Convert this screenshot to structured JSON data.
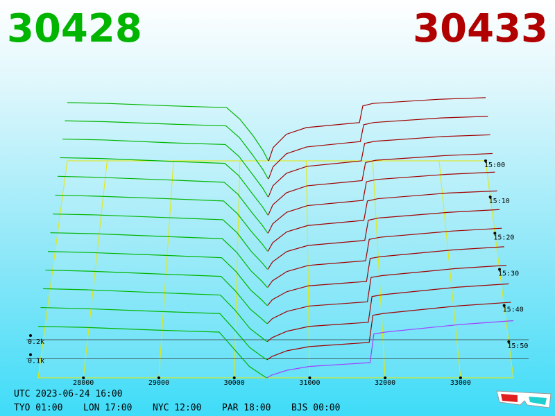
{
  "chart_data": {
    "type": "depth3d",
    "bid_price_label": "30428",
    "ask_price_label": "30433",
    "bid_color": "#00b400",
    "ask_color": "#a00000",
    "latest_ask_color": "#a040ff",
    "xlim": [
      27400,
      33700
    ],
    "xticks": [
      28000,
      29000,
      30000,
      31000,
      32000,
      33000
    ],
    "yticks": [
      {
        "value": 100,
        "label": "0.1k"
      },
      {
        "value": 200,
        "label": "0.2k"
      }
    ],
    "times": [
      "15:00",
      null,
      "15:10",
      null,
      "15:20",
      null,
      "15:30",
      null,
      "15:40",
      null,
      "15:50",
      null,
      null
    ],
    "bid_prices": [
      27400,
      28000,
      29000,
      29800,
      30000,
      30200,
      30350,
      30428
    ],
    "ask_prices": [
      30433,
      30500,
      30700,
      31000,
      31800,
      31850,
      32000,
      33000,
      33700
    ],
    "bids": [
      [
        350,
        345,
        330,
        320,
        250,
        150,
        60,
        0
      ],
      [
        345,
        340,
        325,
        315,
        245,
        140,
        55,
        0
      ],
      [
        340,
        335,
        318,
        308,
        238,
        132,
        52,
        0
      ],
      [
        333,
        328,
        312,
        300,
        230,
        125,
        48,
        0
      ],
      [
        326,
        320,
        305,
        292,
        222,
        118,
        45,
        0
      ],
      [
        318,
        312,
        298,
        285,
        212,
        110,
        42,
        0
      ],
      [
        310,
        305,
        290,
        278,
        205,
        100,
        38,
        0
      ],
      [
        303,
        298,
        282,
        270,
        195,
        92,
        35,
        0
      ],
      [
        296,
        290,
        275,
        262,
        185,
        85,
        32,
        0
      ],
      [
        290,
        284,
        268,
        256,
        175,
        78,
        28,
        0
      ],
      [
        284,
        278,
        262,
        250,
        168,
        70,
        25,
        0
      ],
      [
        277,
        271,
        256,
        245,
        158,
        65,
        22,
        0
      ],
      [
        270,
        265,
        250,
        240,
        150,
        60,
        20,
        0
      ]
    ],
    "asks": [
      [
        0,
        80,
        160,
        200,
        230,
        330,
        345,
        370,
        380
      ],
      [
        0,
        72,
        150,
        190,
        222,
        322,
        335,
        362,
        372
      ],
      [
        0,
        66,
        140,
        180,
        212,
        315,
        327,
        355,
        365
      ],
      [
        0,
        60,
        130,
        170,
        200,
        305,
        318,
        345,
        357
      ],
      [
        0,
        54,
        120,
        158,
        188,
        295,
        308,
        337,
        350
      ],
      [
        0,
        48,
        110,
        146,
        175,
        285,
        298,
        330,
        342
      ],
      [
        0,
        42,
        100,
        134,
        162,
        275,
        288,
        320,
        335
      ],
      [
        0,
        37,
        88,
        122,
        148,
        266,
        278,
        312,
        328
      ],
      [
        0,
        32,
        76,
        108,
        132,
        258,
        268,
        305,
        322
      ],
      [
        0,
        27,
        66,
        95,
        118,
        250,
        260,
        298,
        316
      ],
      [
        0,
        22,
        56,
        82,
        104,
        242,
        252,
        292,
        310
      ],
      [
        0,
        18,
        48,
        70,
        92,
        236,
        246,
        286,
        305
      ],
      [
        0,
        15,
        40,
        60,
        80,
        230,
        240,
        280,
        300
      ]
    ],
    "footer_utc": "UTC 2023-06-24 16:00",
    "footer_zones": [
      "TYO 01:00",
      "LON 17:00",
      "NYC 12:00",
      "PAR 18:00",
      "BJS 00:00"
    ]
  }
}
